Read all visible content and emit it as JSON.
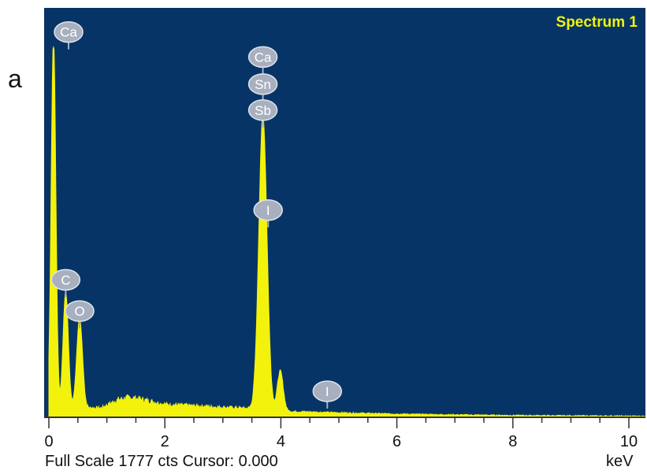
{
  "panel_label": "a",
  "footer": "Full Scale 1777 cts Cursor: 0.000",
  "colors": {
    "plot_background": "#073466",
    "spectrum_fill": "#f2f20c",
    "title_color": "#f2f20c",
    "tag_fill": "#a8b0bf",
    "axis_color": "#333333"
  },
  "chart_data": {
    "type": "area",
    "title": "Spectrum 1",
    "xlabel": "keV",
    "ylabel": "",
    "xlim": [
      0,
      10.3
    ],
    "ylim": [
      0,
      1777
    ],
    "x_ticks": [
      0,
      2,
      4,
      6,
      8,
      10
    ],
    "x_tick_labels": [
      "0",
      "2",
      "4",
      "6",
      "8",
      "10"
    ],
    "grid": false,
    "peaks": [
      {
        "energy": 0.08,
        "counts": 1777,
        "width": 0.04
      },
      {
        "energy": 0.29,
        "counts": 555,
        "width": 0.045
      },
      {
        "energy": 0.53,
        "counts": 430,
        "width": 0.05
      },
      {
        "energy": 3.69,
        "counts": 1410,
        "width": 0.07
      },
      {
        "energy": 3.99,
        "counts": 190,
        "width": 0.05
      }
    ],
    "background": [
      [
        0.6,
        45
      ],
      [
        0.9,
        45
      ],
      [
        1.2,
        85
      ],
      [
        1.4,
        95
      ],
      [
        1.7,
        80
      ],
      [
        2.0,
        62
      ],
      [
        2.5,
        55
      ],
      [
        3.0,
        48
      ],
      [
        3.3,
        45
      ],
      [
        3.6,
        40
      ],
      [
        4.2,
        28
      ],
      [
        5.0,
        22
      ],
      [
        6.0,
        16
      ],
      [
        7.0,
        12
      ],
      [
        8.0,
        9
      ],
      [
        9.0,
        7
      ],
      [
        10.3,
        5
      ]
    ],
    "peak_tags": [
      {
        "label": "Ca",
        "energy": 0.34,
        "counts": 1850
      },
      {
        "label": "Ca",
        "energy": 3.69,
        "counts": 1730
      },
      {
        "label": "Sn",
        "energy": 3.69,
        "counts": 1600
      },
      {
        "label": "Sb",
        "energy": 3.69,
        "counts": 1475
      },
      {
        "label": "I",
        "energy": 3.78,
        "counts": 995
      },
      {
        "label": "C",
        "energy": 0.29,
        "counts": 660
      },
      {
        "label": "O",
        "energy": 0.53,
        "counts": 510
      },
      {
        "label": "I",
        "energy": 4.8,
        "counts": 125
      }
    ]
  }
}
